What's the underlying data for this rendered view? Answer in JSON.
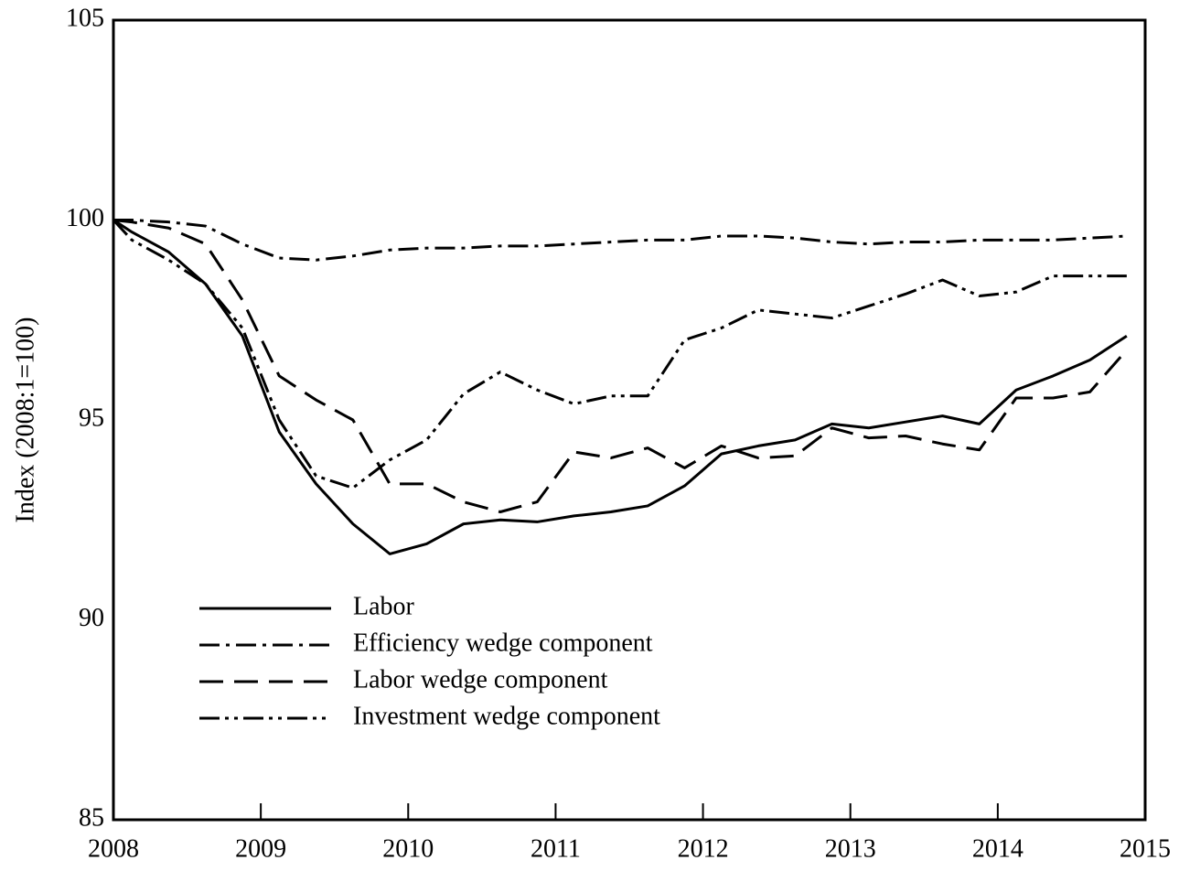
{
  "chart_data": {
    "type": "line",
    "y_label": "Index (2008:1=100)",
    "x": [
      2008,
      2008.125,
      2008.375,
      2008.625,
      2008.875,
      2009.125,
      2009.375,
      2009.625,
      2009.875,
      2010.125,
      2010.375,
      2010.625,
      2010.875,
      2011.125,
      2011.375,
      2011.625,
      2011.875,
      2012.125,
      2012.375,
      2012.625,
      2012.875,
      2013.125,
      2013.375,
      2013.625,
      2013.875,
      2014.125,
      2014.375,
      2014.625,
      2014.875
    ],
    "series": [
      {
        "name": "Labor",
        "color": "#000000",
        "dash": "solid",
        "values": [
          100,
          99.7,
          99.2,
          98.4,
          97.1,
          94.7,
          93.4,
          92.4,
          91.65,
          91.9,
          92.4,
          92.5,
          92.45,
          92.6,
          92.7,
          92.85,
          93.35,
          94.15,
          94.35,
          94.5,
          94.9,
          94.8,
          94.95,
          95.1,
          94.9,
          95.75,
          96.1,
          96.5,
          97.1
        ]
      },
      {
        "name": "Efficiency wedge component",
        "color": "#000000",
        "dash": "dashdot",
        "values": [
          100,
          100,
          99.95,
          99.85,
          99.4,
          99.05,
          99.0,
          99.1,
          99.25,
          99.3,
          99.3,
          99.35,
          99.35,
          99.4,
          99.45,
          99.5,
          99.5,
          99.6,
          99.6,
          99.55,
          99.45,
          99.4,
          99.45,
          99.45,
          99.5,
          99.5,
          99.5,
          99.55,
          99.6
        ]
      },
      {
        "name": "Labor wedge component",
        "color": "#000000",
        "dash": "dashed",
        "values": [
          100,
          99.95,
          99.8,
          99.4,
          98.0,
          96.1,
          95.5,
          95.0,
          93.4,
          93.4,
          92.95,
          92.7,
          92.95,
          94.2,
          94.05,
          94.3,
          93.8,
          94.35,
          94.05,
          94.1,
          94.8,
          94.55,
          94.6,
          94.4,
          94.25,
          95.55,
          95.55,
          95.7,
          96.75
        ]
      },
      {
        "name": "Investment wedge component",
        "color": "#000000",
        "dash": "dashdotdot",
        "values": [
          100,
          99.5,
          99.0,
          98.4,
          97.3,
          95.0,
          93.6,
          93.3,
          94.0,
          94.5,
          95.65,
          96.2,
          95.75,
          95.4,
          95.6,
          95.6,
          97.0,
          97.3,
          97.75,
          97.65,
          97.55,
          97.85,
          98.15,
          98.5,
          98.1,
          98.2,
          98.6,
          98.6,
          98.6
        ]
      }
    ],
    "xlim": [
      2008,
      2015
    ],
    "xticks": [
      2008,
      2009,
      2010,
      2011,
      2012,
      2013,
      2014,
      2015
    ],
    "ylim": [
      85,
      105
    ],
    "yticks": [
      85,
      90,
      95,
      100,
      105
    ],
    "legend": "lower left"
  }
}
